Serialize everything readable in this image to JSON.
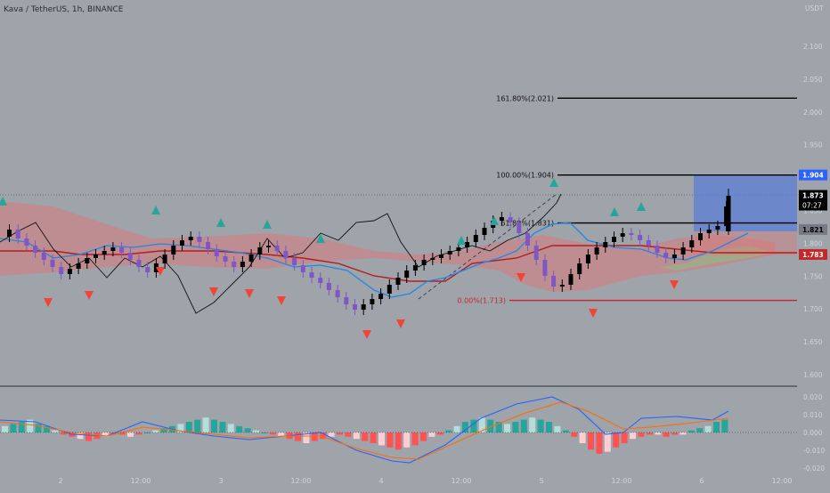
{
  "header": {
    "symbol": "Kava / TetherUS, 1h, BINANCE"
  },
  "price_axis": {
    "currency": "USDT",
    "ticks": [
      "2.100",
      "2.050",
      "2.000",
      "1.950",
      "1.900",
      "1.850",
      "1.800",
      "1.750",
      "1.700",
      "1.650",
      "1.600"
    ],
    "labels": {
      "target": "1.904",
      "current": "1.873",
      "countdown": "07:27",
      "level_mid": "1.821",
      "stop": "1.783"
    }
  },
  "macd_axis": {
    "ticks": [
      "0.020",
      "0.010",
      "0.000",
      "-0.010",
      "-0.020"
    ]
  },
  "time_axis": {
    "labels": [
      "2",
      "12:00",
      "3",
      "12:00",
      "4",
      "12:00",
      "5",
      "12:00",
      "6",
      "12:00"
    ]
  },
  "fib_levels": [
    {
      "label": "161.80%(2.021)",
      "value": 2.021
    },
    {
      "label": "100.00%(1.904)",
      "value": 1.904
    },
    {
      "label": "61.80%(1.831)",
      "value": 1.831
    },
    {
      "label": "0.00%(1.713)",
      "value": 1.713
    }
  ],
  "colors": {
    "background": "#9fa3aa",
    "bull_candle": "#000000",
    "bear_candle": "#7e57c2",
    "cloud": "#e57373",
    "kijun": "#b71c1c",
    "tenkan": "#1e88e5",
    "signal_up": "#26a69a",
    "signal_down": "#f44336",
    "position_box": "#5b7fd6",
    "target_label": "#2962ff",
    "stop_label": "#c62828",
    "macd_line": "#2962ff",
    "signal_line": "#ff6d00"
  }
}
